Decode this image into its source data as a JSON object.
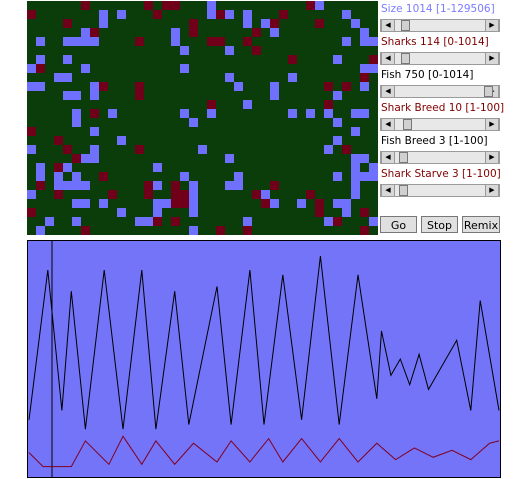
{
  "controls": [
    {
      "label": "Size 1014 [1-129506]",
      "color": "#7b7bff"
    },
    {
      "label": "Sharks 114 [0-1014]",
      "color": "#800000"
    },
    {
      "label": "Fish 750 [0-1014]",
      "color": "#000000"
    },
    {
      "label": "Shark Breed 10 [1-100]",
      "color": "#800000"
    },
    {
      "label": "Fish Breed 3 [1-100]",
      "color": "#000000"
    },
    {
      "label": "Shark Starve 3 [1-100]",
      "color": "#800000"
    }
  ],
  "buttons": [
    "Go",
    "Stop",
    "Remix"
  ],
  "plot": {
    "x": [
      0,
      4,
      7,
      9,
      12,
      16,
      20,
      24,
      27,
      31,
      34,
      40,
      43,
      47,
      50,
      54,
      58,
      62,
      66,
      70,
      74,
      75,
      77,
      79,
      81,
      83,
      85,
      91,
      94,
      96,
      100
    ],
    "fish": [
      24,
      88,
      28,
      79,
      20,
      88,
      20,
      88,
      20,
      79,
      22,
      81,
      22,
      88,
      22,
      86,
      24,
      94,
      22,
      86,
      33,
      62,
      43,
      50,
      39,
      52,
      37,
      58,
      28,
      75,
      28
    ],
    "shark_x": [
      0,
      3,
      9,
      12,
      17,
      20,
      24,
      27,
      31,
      35,
      40,
      43,
      47,
      51,
      54,
      58,
      62,
      66,
      70,
      74,
      78,
      82,
      86,
      90,
      94,
      98,
      100
    ],
    "sharks": [
      10,
      4,
      4,
      15,
      5,
      17,
      5,
      15,
      5,
      14,
      6,
      15,
      6,
      16,
      6,
      16,
      6,
      16,
      6,
      14,
      7,
      12,
      8,
      11,
      7,
      14,
      15
    ]
  }
}
